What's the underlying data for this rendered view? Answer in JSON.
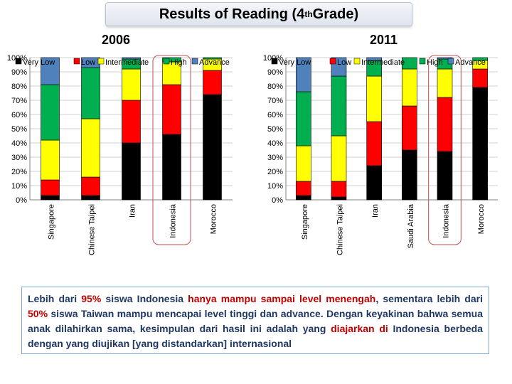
{
  "title": {
    "main": "Results of Reading (4",
    "sup": "th",
    "tail": " Grade)"
  },
  "legend_labels": [
    "Very Low",
    "Low",
    "Intermediate",
    "High",
    "Advance"
  ],
  "colors": {
    "Very Low": "#000000",
    "Low": "#ff0000",
    "Intermediate": "#ffff00",
    "High": "#00b050",
    "Advance": "#4f81bd"
  },
  "y_ticks": [
    "0%",
    "10%",
    "20%",
    "30%",
    "40%",
    "50%",
    "60%",
    "70%",
    "80%",
    "90%",
    "100%"
  ],
  "chart_data": [
    {
      "type": "bar",
      "stacked": true,
      "title": "2006",
      "categories": [
        "Singapore",
        "Chinese Taipei",
        "Iran",
        "Indonesia",
        "Morocco"
      ],
      "ylim": [
        0,
        100
      ],
      "grid": true,
      "legend_position": "top",
      "highlight_category": "Indonesia",
      "series": [
        {
          "name": "Very Low",
          "values": [
            3,
            3,
            40,
            46,
            74
          ]
        },
        {
          "name": "Low",
          "values": [
            11,
            13,
            30,
            35,
            17
          ]
        },
        {
          "name": "Intermediate",
          "values": [
            28,
            41,
            22,
            16,
            8
          ]
        },
        {
          "name": "High",
          "values": [
            39,
            36,
            7,
            3,
            1
          ]
        },
        {
          "name": "Advance",
          "values": [
            19,
            7,
            1,
            0,
            0
          ]
        }
      ]
    },
    {
      "type": "bar",
      "stacked": true,
      "title": "2011",
      "categories": [
        "Singapore",
        "Chinese Taipei",
        "Iran",
        "Saudi Arabia",
        "Indonesia",
        "Morocco"
      ],
      "ylim": [
        0,
        100
      ],
      "grid": true,
      "legend_position": "top",
      "highlight_category": "Indonesia",
      "series": [
        {
          "name": "Very Low",
          "values": [
            3,
            2,
            24,
            35,
            34,
            79
          ]
        },
        {
          "name": "Low",
          "values": [
            10,
            11,
            31,
            31,
            38,
            13
          ]
        },
        {
          "name": "Intermediate",
          "values": [
            25,
            32,
            32,
            26,
            20,
            6
          ]
        },
        {
          "name": "High",
          "values": [
            38,
            42,
            11,
            8,
            7,
            2
          ]
        },
        {
          "name": "Advance",
          "values": [
            24,
            13,
            2,
            0,
            1,
            0
          ]
        }
      ]
    }
  ],
  "note": {
    "p1": "Lebih dari ",
    "p2": "95% ",
    "p3": "siswa Indonesia ",
    "p4": "hanya mampu sampai level menengah",
    "p5": ", sementara lebih dari ",
    "p6": " 50% ",
    "p7": " siswa Taiwan ",
    "p8": "mampu mencapai level tinggi dan advance",
    "p9": ". Dengan keyakinan bahwa semua anak dilahirkan sama, kesimpulan dari hasil ini adalah yang ",
    "p10": "diajarkan di",
    "p11": " Indonesia berbeda dengan yang diujikan [yang distandarkan] internasional"
  }
}
